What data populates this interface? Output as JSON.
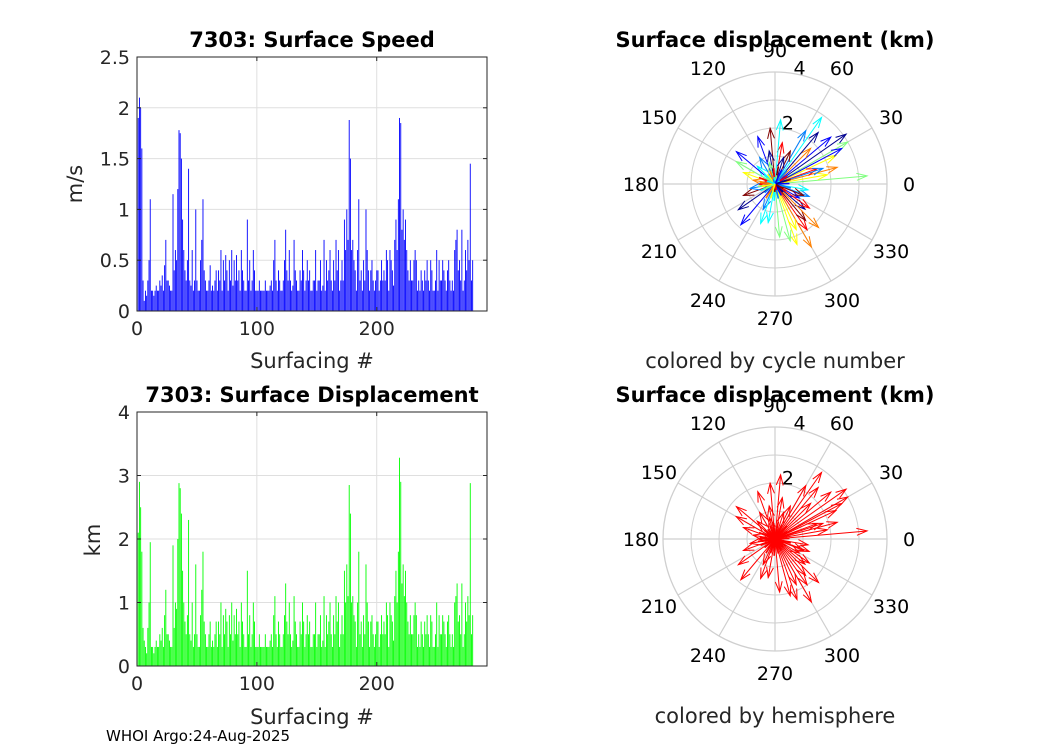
{
  "footer": "WHOI Argo:24-Aug-2025",
  "chart_data": [
    {
      "id": "speed",
      "type": "bar",
      "title": "7303: Surface Speed",
      "xlabel": "Surfacing #",
      "ylabel": "m/s",
      "xlim": [
        0,
        292
      ],
      "ylim": [
        0,
        2.5
      ],
      "xticks": [
        "0",
        "100",
        "200"
      ],
      "yticks": [
        "0",
        "0.5",
        "1",
        "1.5",
        "2",
        "2.5"
      ],
      "grid": true,
      "color": "#0000ff",
      "values": [
        1.9,
        2.1,
        2.0,
        1.6,
        0.3,
        0.1,
        0.2,
        0.15,
        0.3,
        0.5,
        1.1,
        0.2,
        0.2,
        0.15,
        0.2,
        0.25,
        0.2,
        0.2,
        0.3,
        0.25,
        0.35,
        0.2,
        0.45,
        0.7,
        0.3,
        0.3,
        0.25,
        0.2,
        0.2,
        1.15,
        0.4,
        0.6,
        0.5,
        1.2,
        1.78,
        1.75,
        1.5,
        0.9,
        0.6,
        0.4,
        0.3,
        0.5,
        1.4,
        0.3,
        0.25,
        0.6,
        0.2,
        0.3,
        1.0,
        0.3,
        0.2,
        0.2,
        0.5,
        0.7,
        1.1,
        0.4,
        0.3,
        0.2,
        0.2,
        0.3,
        0.45,
        0.2,
        0.25,
        0.2,
        0.3,
        0.4,
        0.2,
        0.4,
        0.3,
        0.6,
        0.2,
        0.5,
        0.3,
        0.55,
        0.4,
        0.2,
        0.5,
        0.3,
        0.6,
        0.25,
        0.5,
        0.3,
        0.55,
        0.3,
        0.4,
        0.2,
        0.6,
        0.4,
        0.3,
        0.2,
        0.2,
        0.9,
        0.3,
        0.5,
        0.2,
        0.3,
        0.6,
        0.4,
        0.2,
        0.2,
        0.2,
        0.3,
        0.2,
        0.2,
        0.2,
        0.2,
        0.3,
        0.2,
        0.2,
        0.2,
        0.25,
        0.3,
        0.2,
        0.5,
        0.7,
        0.3,
        0.2,
        0.4,
        0.3,
        0.2,
        0.2,
        0.3,
        0.5,
        0.8,
        0.4,
        0.3,
        0.6,
        0.3,
        0.2,
        0.25,
        0.7,
        0.4,
        0.3,
        0.2,
        0.2,
        0.4,
        0.3,
        0.6,
        0.4,
        0.2,
        0.3,
        0.5,
        0.3,
        0.4,
        0.2,
        0.2,
        0.3,
        0.3,
        0.6,
        0.2,
        0.3,
        0.3,
        0.5,
        0.2,
        0.25,
        0.7,
        0.2,
        0.5,
        0.3,
        0.4,
        0.6,
        0.3,
        0.2,
        0.5,
        0.3,
        0.7,
        0.4,
        0.6,
        0.2,
        0.3,
        0.5,
        0.3,
        0.9,
        0.6,
        1.0,
        0.7,
        1.88,
        1.5,
        0.6,
        0.7,
        0.5,
        0.4,
        0.2,
        0.6,
        1.1,
        0.3,
        0.4,
        0.2,
        0.5,
        0.3,
        1.0,
        0.6,
        0.4,
        0.2,
        0.4,
        0.5,
        0.3,
        0.2,
        0.3,
        0.4,
        0.4,
        0.2,
        0.3,
        0.5,
        0.3,
        0.4,
        0.3,
        0.6,
        0.5,
        0.2,
        0.6,
        0.5,
        0.4,
        0.25,
        0.7,
        0.9,
        0.6,
        1.1,
        1.9,
        1.85,
        0.8,
        1.0,
        0.7,
        0.9,
        0.6,
        0.4,
        0.3,
        0.5,
        0.3,
        0.3,
        0.5,
        0.6,
        0.5,
        0.2,
        0.3,
        0.2,
        0.4,
        0.3,
        0.2,
        0.4,
        0.3,
        0.5,
        0.3,
        0.2,
        0.5,
        0.4,
        0.2,
        0.2,
        0.3,
        0.6,
        0.2,
        0.5,
        0.3,
        0.3,
        0.5,
        0.4,
        0.3,
        0.2,
        0.4,
        0.5,
        0.3,
        0.2,
        0.3,
        0.2,
        0.6,
        0.7,
        0.8,
        0.4,
        0.5,
        0.3,
        0.8,
        0.2,
        0.3,
        0.6,
        0.4,
        0.7,
        0.5,
        1.45,
        0.3,
        0.5
      ]
    },
    {
      "id": "displacement",
      "type": "bar",
      "title": "7303: Surface Displacement",
      "xlabel": "Surfacing #",
      "ylabel": "km",
      "xlim": [
        0,
        292
      ],
      "ylim": [
        0,
        4
      ],
      "xticks": [
        "0",
        "100",
        "200"
      ],
      "yticks": [
        "0",
        "1",
        "2",
        "3",
        "4"
      ],
      "grid": true,
      "color": "#00ff00",
      "values": [
        2.1,
        2.9,
        2.5,
        1.8,
        0.6,
        0.4,
        0.3,
        0.2,
        0.6,
        1.0,
        1.95,
        0.3,
        0.3,
        0.2,
        0.3,
        0.4,
        0.3,
        0.3,
        0.5,
        0.4,
        0.6,
        0.3,
        0.8,
        1.2,
        0.5,
        0.5,
        0.4,
        0.3,
        0.3,
        1.9,
        0.6,
        1.0,
        0.9,
        2.0,
        2.88,
        2.8,
        2.4,
        1.5,
        1.0,
        0.7,
        0.5,
        0.8,
        2.3,
        0.5,
        0.4,
        1.0,
        0.3,
        0.5,
        1.6,
        0.5,
        0.3,
        0.3,
        0.8,
        1.2,
        1.8,
        0.7,
        0.5,
        0.3,
        0.3,
        0.5,
        0.7,
        0.3,
        0.4,
        0.3,
        0.5,
        0.7,
        0.3,
        0.7,
        0.5,
        1.0,
        0.3,
        0.8,
        0.5,
        0.9,
        0.7,
        0.3,
        0.8,
        0.5,
        1.0,
        0.4,
        0.8,
        0.5,
        0.9,
        0.5,
        0.7,
        0.3,
        1.0,
        0.7,
        0.5,
        0.3,
        0.3,
        1.5,
        0.5,
        0.8,
        0.3,
        0.5,
        1.0,
        0.7,
        0.3,
        0.3,
        0.3,
        0.5,
        0.3,
        0.3,
        0.3,
        0.3,
        0.5,
        0.3,
        0.3,
        0.3,
        0.4,
        0.5,
        0.3,
        0.8,
        1.1,
        0.5,
        0.3,
        0.7,
        0.5,
        0.3,
        0.3,
        0.5,
        0.8,
        1.3,
        0.7,
        0.5,
        1.0,
        0.5,
        0.3,
        0.4,
        1.1,
        0.7,
        0.5,
        0.3,
        0.3,
        0.7,
        0.5,
        1.0,
        0.7,
        0.3,
        0.5,
        0.8,
        0.5,
        0.7,
        0.3,
        0.3,
        0.5,
        0.5,
        1.0,
        0.3,
        0.5,
        0.5,
        0.8,
        0.3,
        0.4,
        1.1,
        0.3,
        0.8,
        0.5,
        0.7,
        1.0,
        0.5,
        0.3,
        0.8,
        0.5,
        1.1,
        0.7,
        1.0,
        0.3,
        0.5,
        0.8,
        0.5,
        1.5,
        1.0,
        1.6,
        1.1,
        2.85,
        2.4,
        1.0,
        1.1,
        0.8,
        0.7,
        0.3,
        1.0,
        1.8,
        0.5,
        0.7,
        0.3,
        0.8,
        0.5,
        1.6,
        1.0,
        0.7,
        0.3,
        0.7,
        0.8,
        0.5,
        0.3,
        0.5,
        0.7,
        0.7,
        0.3,
        0.5,
        0.8,
        0.5,
        0.7,
        0.5,
        1.0,
        0.8,
        0.3,
        1.0,
        0.8,
        0.7,
        0.4,
        1.1,
        1.5,
        1.0,
        1.8,
        3.28,
        2.9,
        1.3,
        1.6,
        1.1,
        1.5,
        1.0,
        0.7,
        0.5,
        0.8,
        0.5,
        0.5,
        0.8,
        1.0,
        0.8,
        0.3,
        0.5,
        0.3,
        0.7,
        0.5,
        0.3,
        0.7,
        0.5,
        0.8,
        0.5,
        0.3,
        0.8,
        0.7,
        0.3,
        0.3,
        0.5,
        1.0,
        0.3,
        0.8,
        0.5,
        0.5,
        0.8,
        0.7,
        0.5,
        0.3,
        0.7,
        0.8,
        0.5,
        0.3,
        0.5,
        0.3,
        1.0,
        1.1,
        1.3,
        0.7,
        0.8,
        0.5,
        1.3,
        0.3,
        0.5,
        1.0,
        0.7,
        1.1,
        0.8,
        2.88,
        0.5,
        0.8
      ]
    },
    {
      "id": "polar_cycle",
      "type": "scatter",
      "subtype": "polar-compass",
      "title": "Surface displacement (km)",
      "xlabel": "colored by cycle number",
      "rlim": [
        0,
        4
      ],
      "rticks": [
        "2",
        "4"
      ],
      "angle_ticks": [
        "0",
        "30",
        "60",
        "90",
        "120",
        "150",
        "180",
        "210",
        "240",
        "270",
        "300",
        "330"
      ],
      "arrow_colors": [
        "#00008f",
        "#0000ff",
        "#0080ff",
        "#00ffff",
        "#80ff80",
        "#ffff00",
        "#ff8000",
        "#ff0000",
        "#800000"
      ],
      "vectors": [
        [
          35,
          3.1
        ],
        [
          40,
          2.6
        ],
        [
          60,
          2.2
        ],
        [
          55,
          2.9
        ],
        [
          30,
          3.0
        ],
        [
          25,
          2.4
        ],
        [
          45,
          1.8
        ],
        [
          80,
          1.5
        ],
        [
          95,
          2.0
        ],
        [
          100,
          1.2
        ],
        [
          110,
          1.8
        ],
        [
          120,
          1.1
        ],
        [
          135,
          0.9
        ],
        [
          150,
          1.6
        ],
        [
          160,
          1.2
        ],
        [
          170,
          0.8
        ],
        [
          180,
          0.6
        ],
        [
          200,
          1.2
        ],
        [
          215,
          1.6
        ],
        [
          230,
          1.9
        ],
        [
          245,
          1.0
        ],
        [
          260,
          1.4
        ],
        [
          275,
          1.9
        ],
        [
          290,
          2.3
        ],
        [
          300,
          2.6
        ],
        [
          305,
          2.0
        ],
        [
          310,
          1.7
        ],
        [
          320,
          1.4
        ],
        [
          330,
          1.0
        ],
        [
          340,
          1.3
        ],
        [
          350,
          1.2
        ],
        [
          5,
          3.3
        ],
        [
          10,
          1.9
        ],
        [
          15,
          2.3
        ],
        [
          20,
          1.6
        ],
        [
          65,
          1.3
        ],
        [
          72,
          1.0
        ],
        [
          140,
          1.8
        ],
        [
          190,
          0.9
        ],
        [
          250,
          1.5
        ],
        [
          285,
          2.1
        ],
        [
          295,
          1.8
        ],
        [
          315,
          2.2
        ],
        [
          325,
          1.5
        ],
        [
          338,
          1.1
        ],
        [
          50,
          2.4
        ],
        [
          28,
          2.7
        ],
        [
          18,
          1.8
        ],
        [
          85,
          2.3
        ],
        [
          105,
          0.8
        ]
      ]
    },
    {
      "id": "polar_hemisphere",
      "type": "scatter",
      "subtype": "polar-compass",
      "title": "Surface displacement (km)",
      "xlabel": "colored by hemisphere",
      "rlim": [
        0,
        4
      ],
      "rticks": [
        "2",
        "4"
      ],
      "angle_ticks": [
        "0",
        "30",
        "60",
        "90",
        "120",
        "150",
        "180",
        "210",
        "240",
        "270",
        "300",
        "330"
      ],
      "arrow_colors": [
        "#ff0000"
      ],
      "vectors": [
        [
          35,
          3.1
        ],
        [
          40,
          2.6
        ],
        [
          60,
          2.2
        ],
        [
          55,
          2.9
        ],
        [
          30,
          3.0
        ],
        [
          25,
          2.4
        ],
        [
          45,
          1.8
        ],
        [
          80,
          1.5
        ],
        [
          95,
          2.0
        ],
        [
          100,
          1.2
        ],
        [
          110,
          1.8
        ],
        [
          120,
          1.1
        ],
        [
          135,
          0.9
        ],
        [
          150,
          1.6
        ],
        [
          160,
          1.2
        ],
        [
          170,
          0.8
        ],
        [
          180,
          0.6
        ],
        [
          200,
          1.2
        ],
        [
          215,
          1.6
        ],
        [
          230,
          1.9
        ],
        [
          245,
          1.0
        ],
        [
          260,
          1.4
        ],
        [
          275,
          1.9
        ],
        [
          290,
          2.3
        ],
        [
          300,
          2.6
        ],
        [
          305,
          2.0
        ],
        [
          310,
          1.7
        ],
        [
          320,
          1.4
        ],
        [
          330,
          1.0
        ],
        [
          340,
          1.3
        ],
        [
          350,
          1.2
        ],
        [
          5,
          3.3
        ],
        [
          10,
          1.9
        ],
        [
          15,
          2.3
        ],
        [
          20,
          1.6
        ],
        [
          65,
          1.3
        ],
        [
          72,
          1.0
        ],
        [
          140,
          1.8
        ],
        [
          190,
          0.9
        ],
        [
          250,
          1.5
        ],
        [
          285,
          2.1
        ],
        [
          295,
          1.8
        ],
        [
          315,
          2.2
        ],
        [
          325,
          1.5
        ],
        [
          338,
          1.1
        ],
        [
          50,
          2.4
        ],
        [
          28,
          2.7
        ],
        [
          18,
          1.8
        ],
        [
          85,
          2.3
        ],
        [
          105,
          0.8
        ]
      ]
    }
  ]
}
